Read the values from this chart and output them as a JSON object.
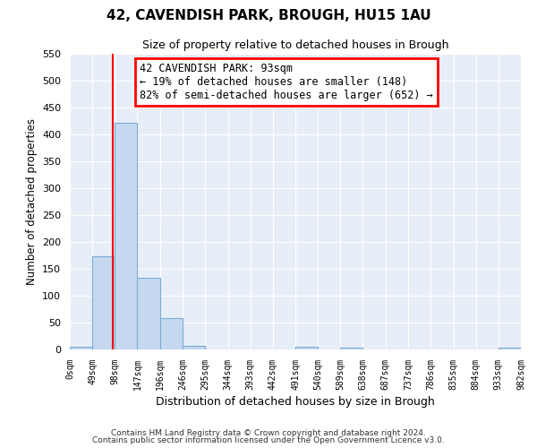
{
  "title": "42, CAVENDISH PARK, BROUGH, HU15 1AU",
  "subtitle": "Size of property relative to detached houses in Brough",
  "xlabel": "Distribution of detached houses by size in Brough",
  "ylabel": "Number of detached properties",
  "bin_edges": [
    0,
    49,
    98,
    147,
    196,
    246,
    295,
    344,
    393,
    442,
    491,
    540,
    589,
    638,
    687,
    737,
    786,
    835,
    884,
    933,
    982
  ],
  "bin_labels": [
    "0sqm",
    "49sqm",
    "98sqm",
    "147sqm",
    "196sqm",
    "246sqm",
    "295sqm",
    "344sqm",
    "393sqm",
    "442sqm",
    "491sqm",
    "540sqm",
    "589sqm",
    "638sqm",
    "687sqm",
    "737sqm",
    "786sqm",
    "835sqm",
    "884sqm",
    "933sqm",
    "982sqm"
  ],
  "counts": [
    5,
    174,
    422,
    133,
    58,
    7,
    0,
    0,
    0,
    0,
    5,
    0,
    4,
    0,
    0,
    0,
    0,
    0,
    0,
    4
  ],
  "bar_color": "#c5d8ef",
  "bar_edge_color": "#7aadd4",
  "vline_x": 93,
  "vline_color": "red",
  "ylim": [
    0,
    550
  ],
  "yticks": [
    0,
    50,
    100,
    150,
    200,
    250,
    300,
    350,
    400,
    450,
    500,
    550
  ],
  "annotation_text": "42 CAVENDISH PARK: 93sqm\n← 19% of detached houses are smaller (148)\n82% of semi-detached houses are larger (652) →",
  "annotation_box_color": "white",
  "annotation_box_edge_color": "red",
  "footer_line1": "Contains HM Land Registry data © Crown copyright and database right 2024.",
  "footer_line2": "Contains public sector information licensed under the Open Government Licence v3.0.",
  "bg_color": "#ffffff",
  "plot_bg_color": "#e8eef7",
  "grid_color": "#ffffff"
}
